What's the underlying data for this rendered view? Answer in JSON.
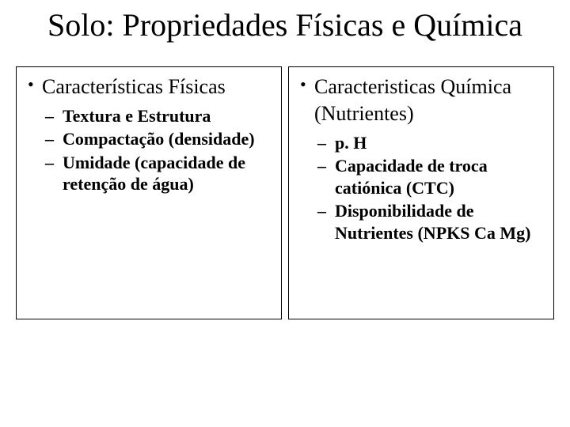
{
  "title": "Solo: Propriedades Físicas e Química",
  "left": {
    "heading": "Características Físicas",
    "items": [
      "Textura e Estrutura",
      "Compactação (densidade)",
      "Umidade (capacidade de retenção de água)"
    ]
  },
  "right": {
    "heading": "Caracteristicas Química (Nutrientes)",
    "items": [
      "p. H",
      "Capacidade de troca catiónica (CTC)",
      "Disponibilidade de Nutrientes (NPKS Ca Mg)"
    ]
  },
  "style": {
    "background_color": "#ffffff",
    "text_color": "#000000",
    "border_color": "#000000",
    "title_fontsize": 40,
    "level1_fontsize": 26,
    "level2_fontsize": 22,
    "font_family": "Times New Roman"
  }
}
